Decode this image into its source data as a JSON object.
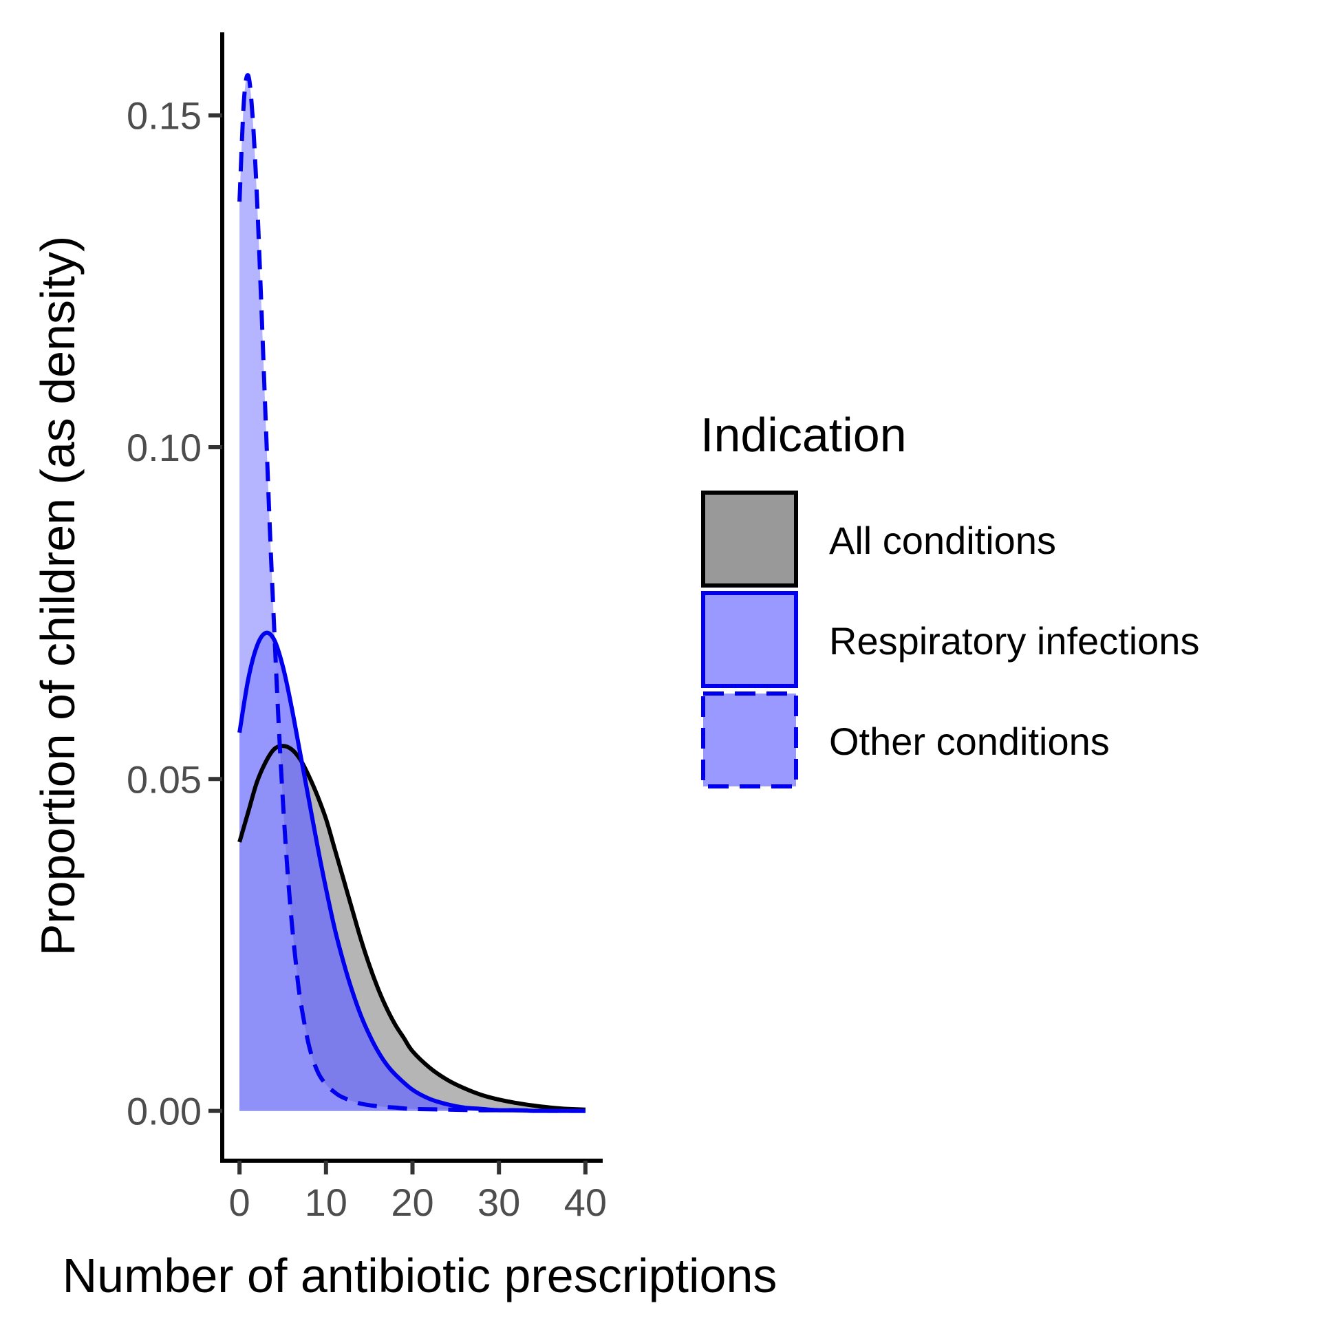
{
  "chart_data": {
    "type": "area",
    "xlabel": "Number of antibiotic prescriptions",
    "ylabel": "Proportion of children (as density)",
    "xlim": [
      -2,
      42
    ],
    "ylim": [
      -0.0075,
      0.1625
    ],
    "xticks": [
      0,
      10,
      20,
      30,
      40
    ],
    "yticks": [
      0.0,
      0.05,
      0.1,
      0.15
    ],
    "xtick_labels": [
      "0",
      "10",
      "20",
      "30",
      "40"
    ],
    "ytick_labels": [
      "0.00",
      "0.05",
      "0.10",
      "0.15"
    ],
    "grid": false,
    "legend": {
      "title": "Indication",
      "placement": "right"
    },
    "series": [
      {
        "name": "All conditions",
        "fill": "#999999",
        "stroke": "#000000",
        "line_style": "solid",
        "x": [
          0,
          1,
          2,
          3,
          4,
          5,
          6,
          7,
          8,
          9,
          10,
          11,
          12,
          13,
          14,
          15,
          16,
          17,
          18,
          19,
          20,
          22,
          24,
          26,
          28,
          30,
          32,
          34,
          36,
          38,
          40
        ],
        "y": [
          0.0405,
          0.045,
          0.0495,
          0.0525,
          0.0545,
          0.055,
          0.0545,
          0.053,
          0.0505,
          0.0475,
          0.044,
          0.0395,
          0.035,
          0.0305,
          0.026,
          0.022,
          0.0185,
          0.0155,
          0.013,
          0.011,
          0.009,
          0.0065,
          0.0047,
          0.0034,
          0.0024,
          0.0017,
          0.0012,
          0.0008,
          0.0005,
          0.0003,
          0.0002
        ]
      },
      {
        "name": "Respiratory infections",
        "fill": "#6666ff",
        "stroke": "#0000ee",
        "line_style": "solid",
        "x": [
          0,
          1,
          2,
          3,
          4,
          5,
          6,
          7,
          8,
          9,
          10,
          11,
          12,
          13,
          14,
          15,
          16,
          17,
          18,
          20,
          22,
          24,
          26,
          28,
          30,
          32,
          34,
          36,
          38,
          40
        ],
        "y": [
          0.057,
          0.065,
          0.07,
          0.072,
          0.071,
          0.067,
          0.061,
          0.054,
          0.047,
          0.04,
          0.0335,
          0.0275,
          0.0225,
          0.0182,
          0.0145,
          0.0115,
          0.009,
          0.007,
          0.0055,
          0.0032,
          0.0018,
          0.001,
          0.0005,
          0.0003,
          0.0001,
          0.0001,
          0.0,
          0.0,
          0.0,
          0.0
        ]
      },
      {
        "name": "Other conditions",
        "fill": "#9999ff",
        "stroke": "#0000ee",
        "line_style": "dashed",
        "x": [
          0,
          0.5,
          1,
          1.5,
          2,
          2.5,
          3,
          3.5,
          4,
          4.5,
          5,
          5.5,
          6,
          6.5,
          7,
          8,
          9,
          10,
          11,
          12,
          14,
          16,
          18,
          20,
          24,
          28,
          32,
          36,
          40
        ],
        "y": [
          0.137,
          0.152,
          0.156,
          0.15,
          0.138,
          0.122,
          0.105,
          0.088,
          0.073,
          0.059,
          0.047,
          0.037,
          0.029,
          0.0225,
          0.017,
          0.01,
          0.006,
          0.004,
          0.0028,
          0.002,
          0.0011,
          0.0007,
          0.0005,
          0.0003,
          0.0002,
          0.0001,
          0.0001,
          0.0,
          0.0
        ]
      }
    ]
  }
}
